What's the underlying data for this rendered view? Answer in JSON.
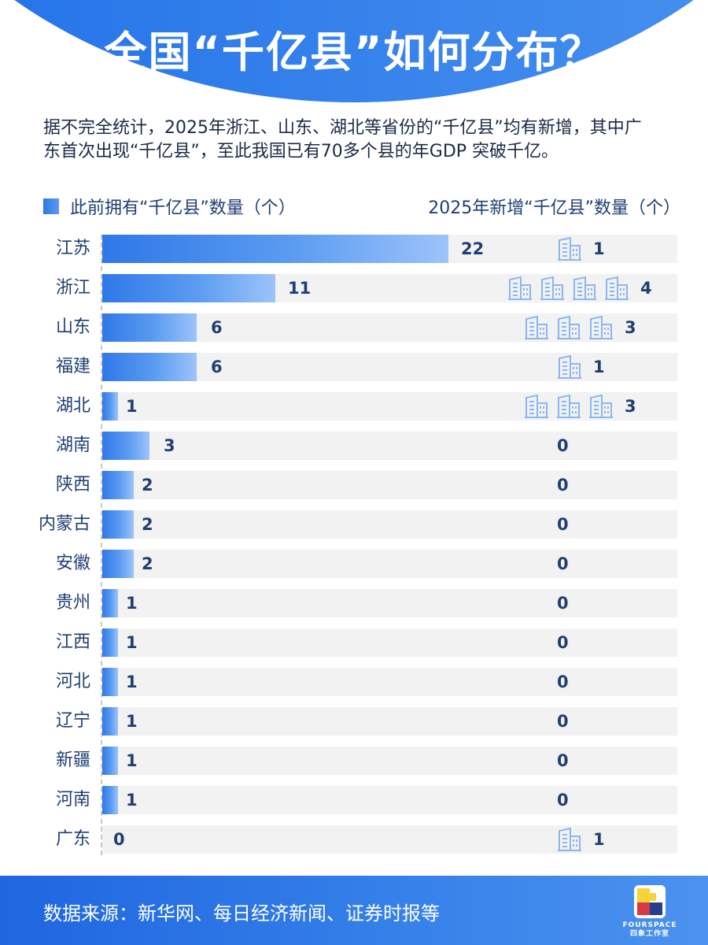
{
  "header": {
    "title": "全国“千亿县”如何分布？"
  },
  "intro": {
    "text": "据不完全统计，2025年浙江、山东、湖北等省份的“千亿县”均有新增，其中广东首次出现“千亿县”，至此我国已有70多个县的年GDP 突破千亿。"
  },
  "legend": {
    "previous_label": "此前拥有“千亿县”数量（个）",
    "new_label": "2025年新增“千亿县”数量（个）"
  },
  "colors": {
    "bar_start": "#2f78e8",
    "bar_end": "#9dc3fa",
    "track": "#f2f2f3",
    "value_text": "#1f3f73",
    "building_icon": "#8ab7f2",
    "header_bg": "#2f7ae9"
  },
  "rows": [
    {
      "province": "江苏",
      "previous": "22",
      "new": "1"
    },
    {
      "province": "浙江",
      "previous": "11",
      "new": "4"
    },
    {
      "province": "山东",
      "previous": "6",
      "new": "3"
    },
    {
      "province": "福建",
      "previous": "6",
      "new": "1"
    },
    {
      "province": "湖北",
      "previous": "1",
      "new": "3"
    },
    {
      "province": "湖南",
      "previous": "3",
      "new": "0"
    },
    {
      "province": "陕西",
      "previous": "2",
      "new": "0"
    },
    {
      "province": "内蒙古",
      "previous": "2",
      "new": "0"
    },
    {
      "province": "安徽",
      "previous": "2",
      "new": "0"
    },
    {
      "province": "贵州",
      "previous": "1",
      "new": "0"
    },
    {
      "province": "江西",
      "previous": "1",
      "new": "0"
    },
    {
      "province": "河北",
      "previous": "1",
      "new": "0"
    },
    {
      "province": "辽宁",
      "previous": "1",
      "new": "0"
    },
    {
      "province": "新疆",
      "previous": "1",
      "new": "0"
    },
    {
      "province": "河南",
      "previous": "1",
      "new": "0"
    },
    {
      "province": "广东",
      "previous": "0",
      "new": "1"
    }
  ],
  "footer": {
    "source": "数据来源：新华网、每日经济新闻、证券时报等",
    "logo_text_en": "FOURSPACE",
    "logo_text_cn": "四象工作室"
  },
  "chart_data": {
    "type": "bar",
    "title": "全国“千亿县”如何分布？",
    "subtitle": "据不完全统计，2025年浙江、山东、湖北等省份的“千亿县”均有新增，其中广东首次出现“千亿县”，至此我国已有70多个县的年GDP 突破千亿。",
    "orientation": "horizontal",
    "categories": [
      "江苏",
      "浙江",
      "山东",
      "福建",
      "湖北",
      "湖南",
      "陕西",
      "内蒙古",
      "安徽",
      "贵州",
      "江西",
      "河北",
      "辽宁",
      "新疆",
      "河南",
      "广东"
    ],
    "series": [
      {
        "name": "此前拥有“千亿县”数量（个）",
        "values": [
          22,
          11,
          6,
          6,
          1,
          3,
          2,
          2,
          2,
          1,
          1,
          1,
          1,
          1,
          1,
          0
        ]
      },
      {
        "name": "2025年新增“千亿县”数量（个）",
        "values": [
          1,
          4,
          3,
          1,
          3,
          0,
          0,
          0,
          0,
          0,
          0,
          0,
          0,
          0,
          0,
          1
        ]
      }
    ],
    "xlabel": "",
    "ylabel": "",
    "grid": false,
    "legend_position": "top",
    "annotations": [
      "数据来源：新华网、每日经济新闻、证券时报等"
    ]
  }
}
